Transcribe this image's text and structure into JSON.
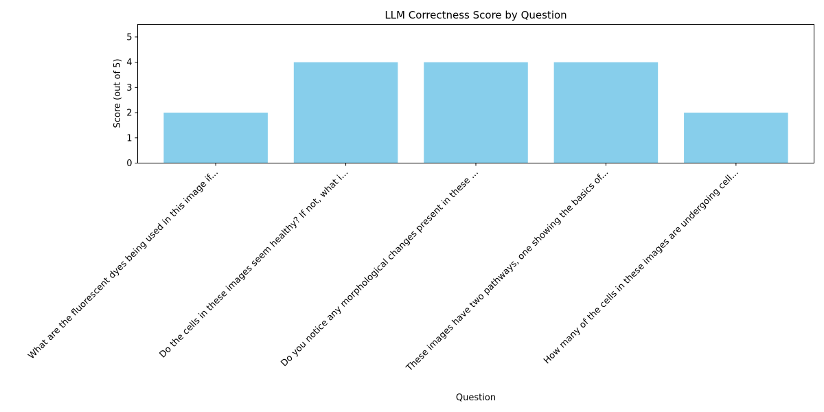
{
  "chart_data": {
    "type": "bar",
    "title": "LLM Correctness Score by Question",
    "xlabel": "Question",
    "ylabel": "Score (out of 5)",
    "categories": [
      "What are the fluorescent dyes being used in this image if...",
      "Do the cells in these images seem healthy? If not, what i...",
      "Do you notice any morphological changes present in these ...",
      "These images have two pathways, one showing the basics of...",
      "How many of the cells in these images are undergoing cell..."
    ],
    "values": [
      2,
      4,
      4,
      4,
      2
    ],
    "ylim": [
      0,
      5.5
    ],
    "yticks": [
      0,
      1,
      2,
      3,
      4,
      5
    ],
    "grid": false,
    "bar_color": "#87CEEB"
  }
}
